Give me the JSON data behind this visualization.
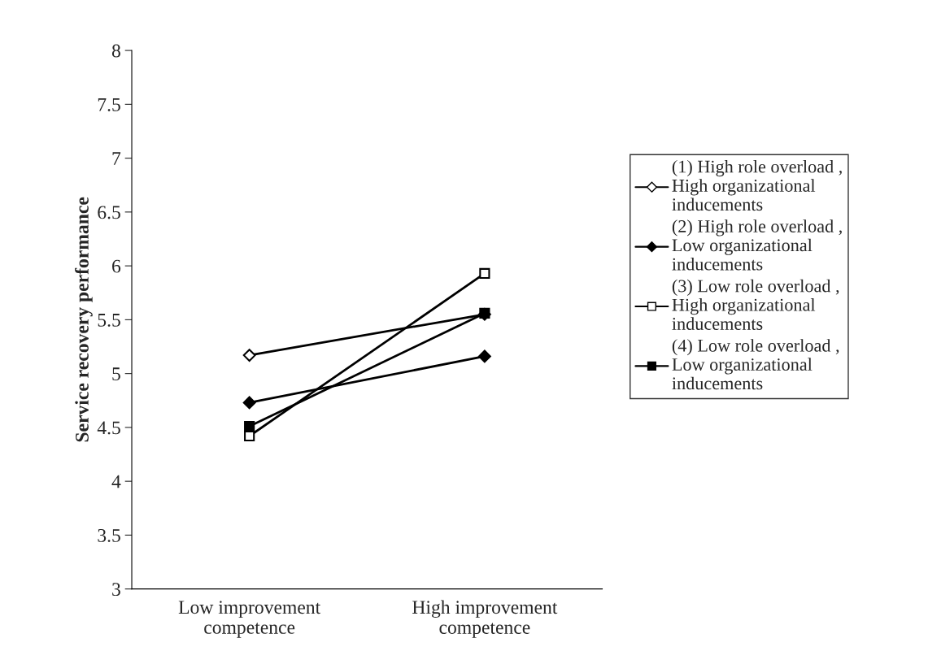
{
  "chart_data": {
    "type": "line",
    "ylabel": "Service recovery performance",
    "categories": [
      "Low improvement\ncompetence",
      "High improvement\ncompetence"
    ],
    "ylim": [
      3,
      8
    ],
    "yticks": [
      3,
      3.5,
      4,
      4.5,
      5,
      5.5,
      6,
      6.5,
      7,
      7.5,
      8
    ],
    "grid": false,
    "legend": "right",
    "line_style": "solid",
    "series": [
      {
        "name": "(1) High role overload ,\nHigh organizational\ninducements",
        "color": "#000000",
        "marker": "diamond",
        "colors": [
          "#ffffff",
          "#ffffff"
        ],
        "values": [
          5.17,
          5.55
        ]
      },
      {
        "name": "(2) High role overload ,\nLow organizational\ninducements",
        "color": "#000000",
        "marker": "diamond",
        "colors": [
          "#000000",
          "#000000"
        ],
        "values": [
          4.73,
          5.16
        ]
      },
      {
        "name": "(3) Low role overload ,\nHigh organizational\ninducements",
        "color": "#000000",
        "marker": "square",
        "colors": [
          "#ffffff",
          "#ffffff"
        ],
        "values": [
          4.42,
          5.93
        ]
      },
      {
        "name": "(4) Low role overload ,\nLow organizational\ninducements",
        "color": "#000000",
        "marker": "square",
        "colors": [
          "#000000",
          "#000000"
        ],
        "values": [
          4.51,
          5.56
        ]
      }
    ]
  }
}
